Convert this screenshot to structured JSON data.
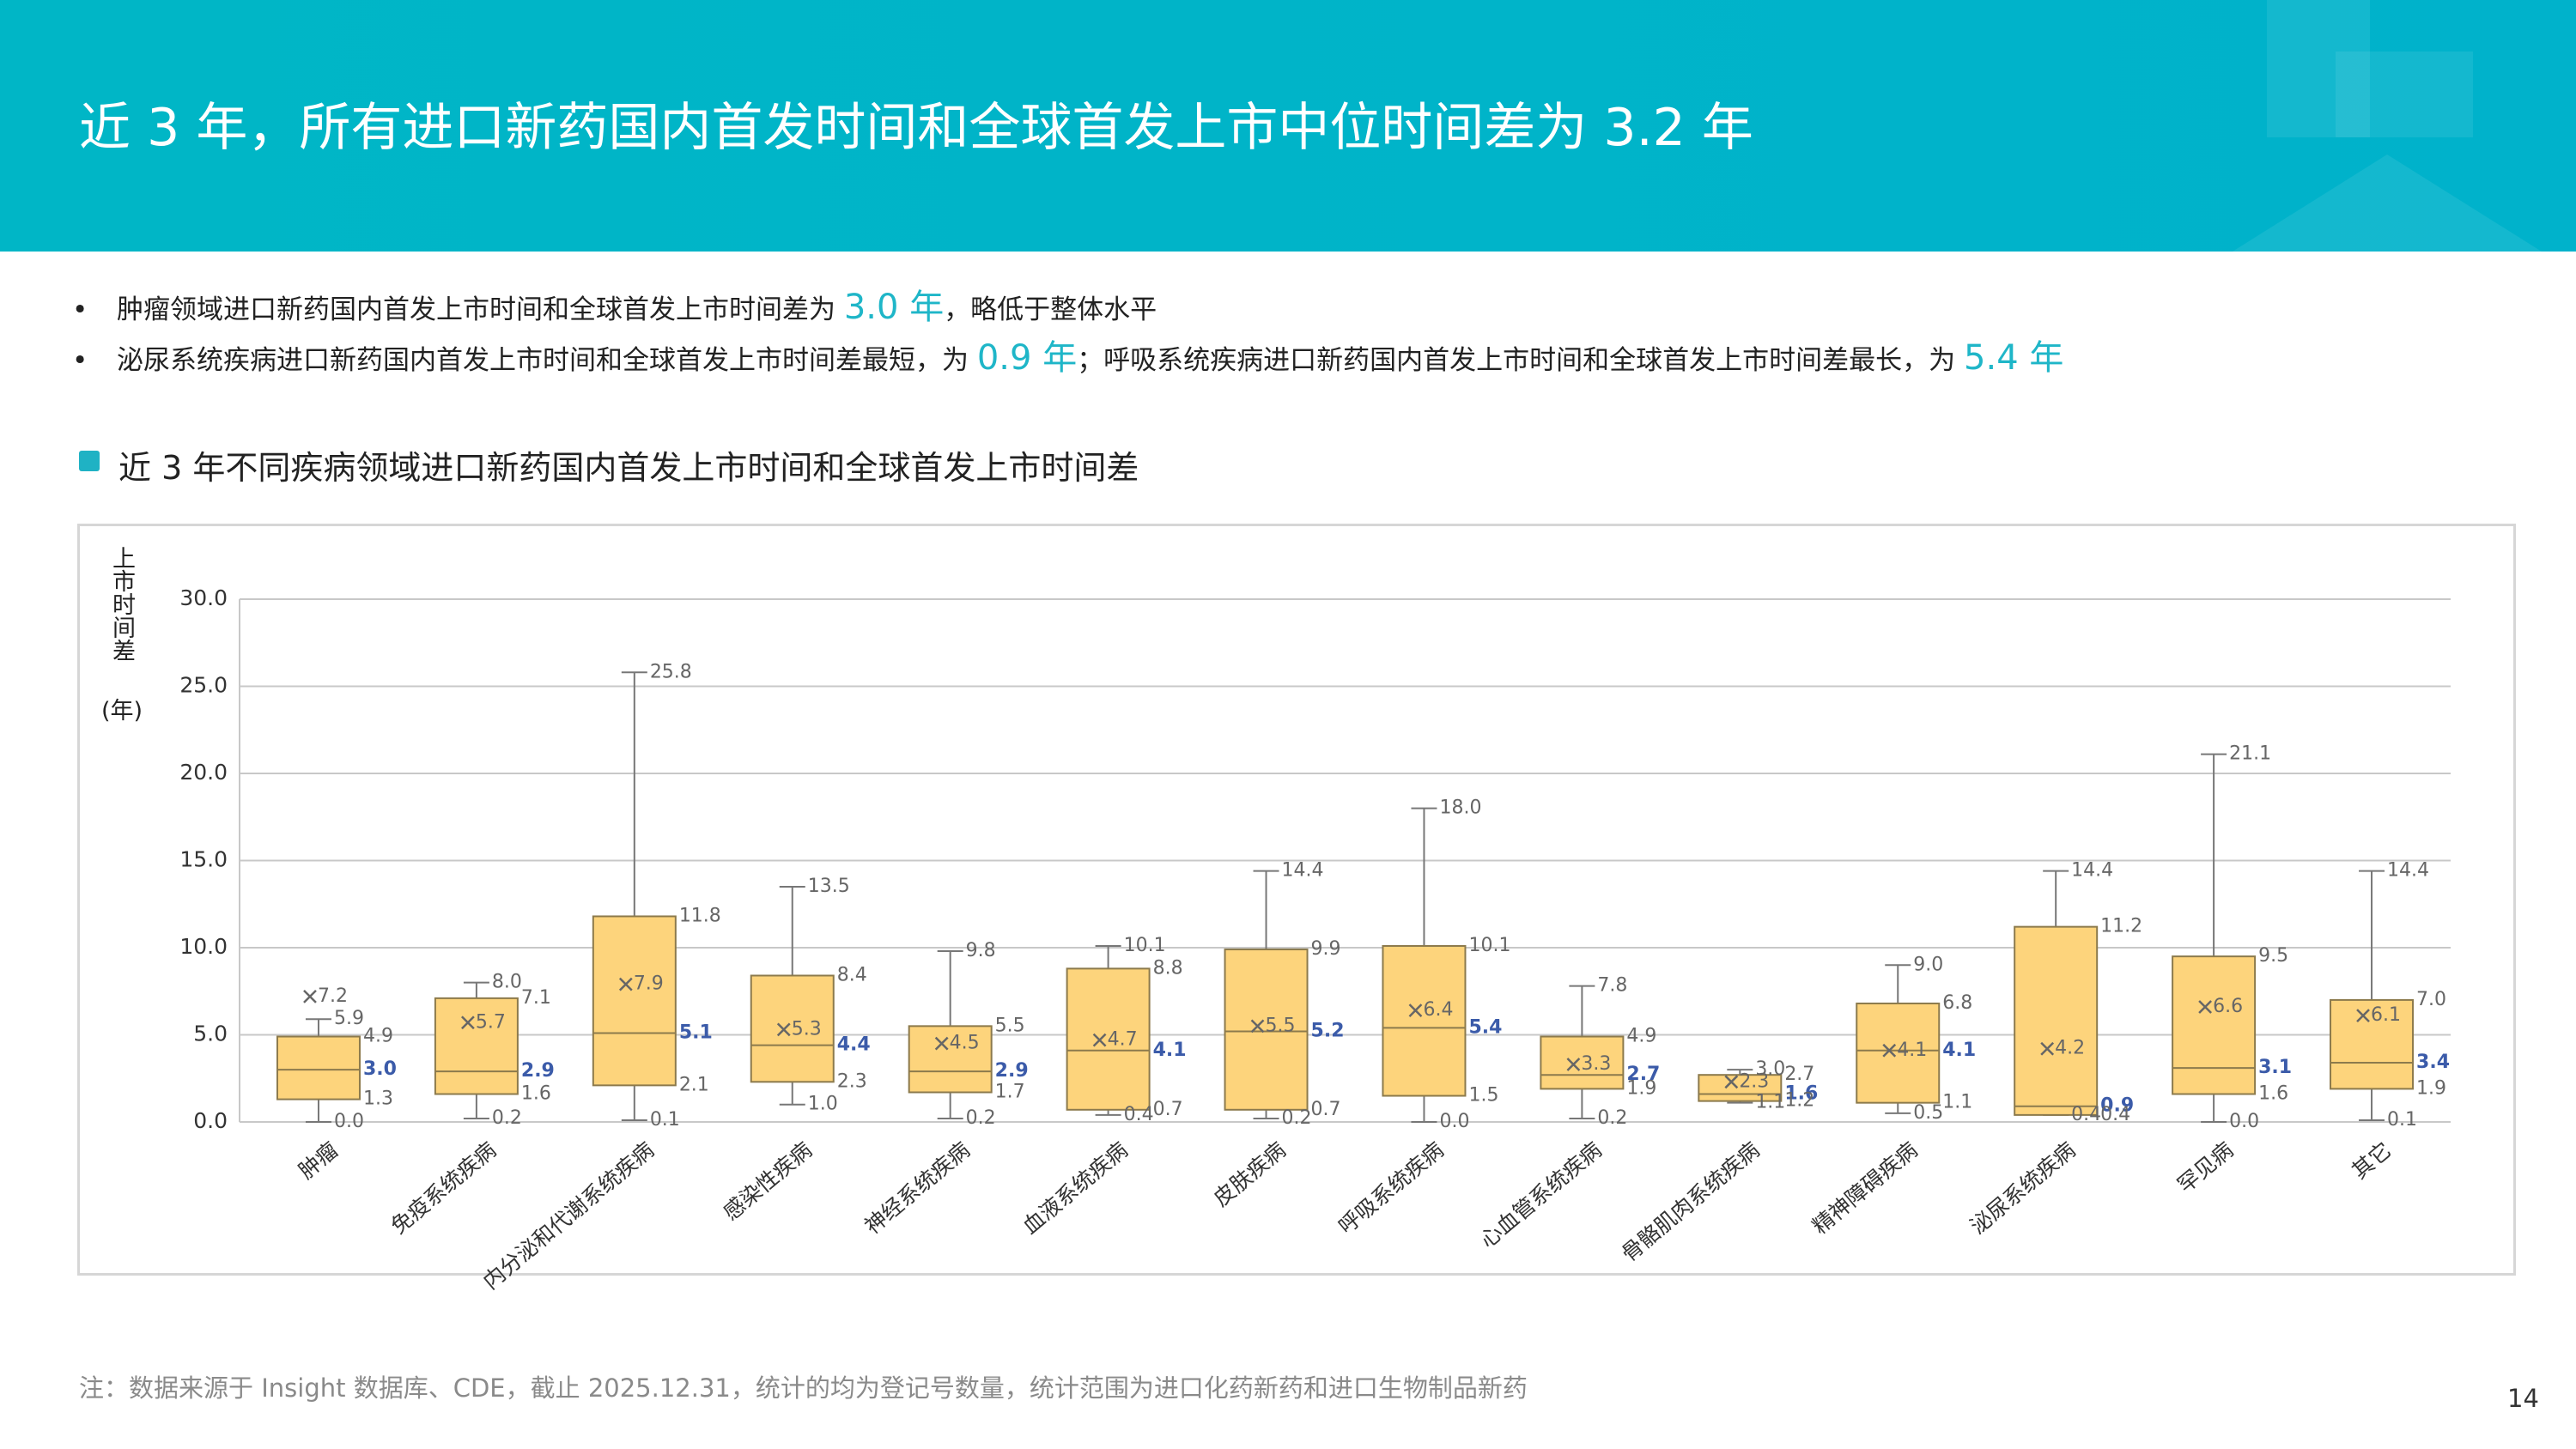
{
  "header": {
    "title": "近 3 年，所有进口新药国内首发时间和全球首发上市中位时间差为 3.2 年"
  },
  "bullets": [
    [
      "肿瘤领域进口新药国内首发上市时间和全球首发上市时间差为 ",
      "3.0 年",
      "，略低于整体水平"
    ],
    [
      "泌尿系统疾病进口新药国内首发上市时间和全球首发上市时间差最短，为 ",
      "0.9 年",
      "；呼吸系统疾病进口新药国内首发上市时间和全球首发上市时间差最长，为 ",
      "5.4 年"
    ]
  ],
  "chart_data": {
    "type": "box",
    "title": "近 3 年不同疾病领域进口新药国内首发上市时间和全球首发上市时间差",
    "y_label": "上市时间差",
    "y_unit": "(年)",
    "categories": [
      "肿瘤",
      "免疫系统疾病",
      "内分泌和代谢系统疾病",
      "感染性疾病",
      "神经系统疾病",
      "血液系统疾病",
      "皮肤疾病",
      "呼吸系统疾病",
      "心血管系统疾病",
      "骨骼肌肉系统疾病",
      "精神障碍疾病",
      "泌尿系统疾病",
      "罕见病",
      "其它"
    ],
    "max": [
      5.9,
      8.0,
      25.8,
      13.5,
      9.8,
      10.1,
      14.4,
      18.0,
      7.8,
      3.0,
      9.0,
      14.4,
      21.1,
      14.4
    ],
    "max_labels": [
      "5.9",
      "8.0",
      "25.8",
      "13.5",
      "9.8",
      "10.1",
      "14.4",
      "18.0",
      "7.8",
      "3.0",
      "9.0",
      "14.4",
      "21.1",
      "14.4"
    ],
    "q3": [
      4.9,
      7.1,
      11.8,
      8.4,
      5.5,
      8.8,
      9.9,
      10.1,
      4.9,
      2.7,
      6.8,
      11.2,
      9.5,
      7.0
    ],
    "q3_labels": [
      "4.9",
      "7.1",
      "11.8",
      "8.4",
      "5.5",
      "8.8",
      "9.9",
      "10.1",
      "4.9",
      "2.7",
      "6.8",
      "11.2",
      "9.5",
      "7.0"
    ],
    "median": [
      3.0,
      2.9,
      5.1,
      4.4,
      2.9,
      4.1,
      5.2,
      5.4,
      2.7,
      1.6,
      4.1,
      0.9,
      3.1,
      3.4
    ],
    "median_labels": [
      "3.0",
      "2.9",
      "5.1",
      "4.4",
      "2.9",
      "4.1",
      "5.2",
      "5.4",
      "2.7",
      "1.6",
      "4.1",
      "0.9",
      "3.1",
      "3.4"
    ],
    "q1": [
      1.3,
      1.6,
      2.1,
      2.3,
      1.7,
      0.7,
      0.7,
      1.5,
      1.9,
      1.2,
      1.1,
      0.4,
      1.6,
      1.9
    ],
    "q1_labels": [
      "1.3",
      "1.6",
      "2.1",
      "2.3",
      "1.7",
      "0.7",
      "0.7",
      "1.5",
      "1.9",
      "1.2",
      "1.1",
      "0.4",
      "1.6",
      "1.9"
    ],
    "min": [
      0.0,
      0.2,
      0.1,
      1.0,
      0.2,
      0.4,
      0.2,
      0.0,
      0.2,
      1.1,
      0.5,
      0.4,
      0.0,
      0.1
    ],
    "min_labels": [
      "0.0",
      "0.2",
      "0.1",
      "1.0",
      "0.2",
      "0.4",
      "0.2",
      "0.0",
      "0.2",
      "1.1",
      "0.5",
      "0.4",
      "0.0",
      "0.1"
    ],
    "mean": [
      7.2,
      5.7,
      7.9,
      5.3,
      4.5,
      4.7,
      5.5,
      6.4,
      3.3,
      2.3,
      4.1,
      4.2,
      6.6,
      6.1
    ],
    "mean_labels": [
      "7.2",
      "5.7",
      "7.9",
      "5.3",
      "4.5",
      "4.7",
      "5.5",
      "6.4",
      "3.3",
      "2.3",
      "4.1",
      "4.2",
      "6.6",
      "6.1"
    ],
    "color": "#fdd47c",
    "ylim": [
      0,
      30
    ],
    "yticks": [
      {
        "value": 0,
        "label": "0.0"
      },
      {
        "value": 5,
        "label": "5.0"
      },
      {
        "value": 10,
        "label": "10.0"
      },
      {
        "value": 15,
        "label": "15.0"
      },
      {
        "value": 20,
        "label": "20.0"
      },
      {
        "value": 25,
        "label": "25.0"
      },
      {
        "value": 30,
        "label": "30.0"
      }
    ],
    "grid": true
  },
  "footnote": "注：数据来源于 Insight 数据库、CDE，截止 2025.12.31，统计的均为登记号数量，统计范围为进口化药新药和进口生物制品新药",
  "page_number": "14"
}
